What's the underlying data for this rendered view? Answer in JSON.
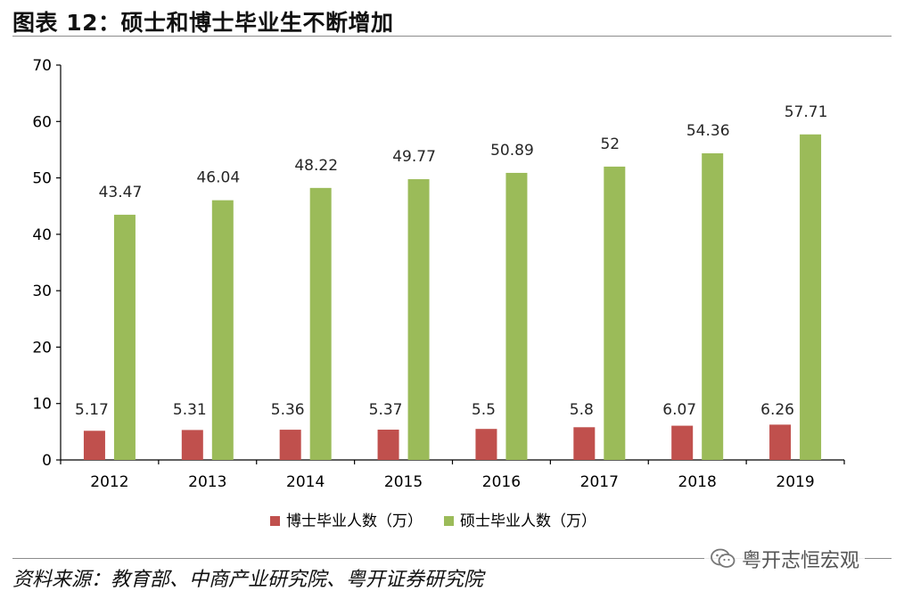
{
  "header": {
    "title": "图表 12：硕士和博士毕业生不断增加"
  },
  "footer": {
    "source": "资料来源：教育部、中商产业研究院、粤开证券研究院",
    "watermark": "粤开志恒宏观",
    "watermark_icon": "wechat-icon"
  },
  "colors": {
    "phd": "#c0504d",
    "master": "#9bbb59",
    "axis": "#000000",
    "label": "#404040"
  },
  "chart_data": {
    "type": "bar",
    "title": "",
    "xlabel": "",
    "ylabel": "",
    "ylim": [
      0,
      70
    ],
    "yticks": [
      0,
      10,
      20,
      30,
      40,
      50,
      60,
      70
    ],
    "grid": false,
    "legend_position": "bottom",
    "categories": [
      "2012",
      "2013",
      "2014",
      "2015",
      "2016",
      "2017",
      "2018",
      "2019"
    ],
    "series": [
      {
        "name": "博士毕业人数（万）",
        "color": "#c0504d",
        "values": [
          5.17,
          5.31,
          5.36,
          5.37,
          5.5,
          5.8,
          6.07,
          6.26
        ],
        "labels": [
          "5.17",
          "5.31",
          "5.36",
          "5.37",
          "5.5",
          "5.8",
          "6.07",
          "6.26"
        ]
      },
      {
        "name": "硕士毕业人数（万）",
        "color": "#9bbb59",
        "values": [
          43.47,
          46.04,
          48.22,
          49.77,
          50.89,
          52,
          54.36,
          57.71
        ],
        "labels": [
          "43.47",
          "46.04",
          "48.22",
          "49.77",
          "50.89",
          "52",
          "54.36",
          "57.71"
        ]
      }
    ]
  }
}
